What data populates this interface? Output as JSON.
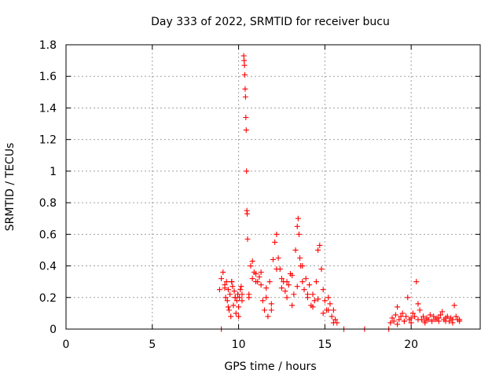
{
  "chart_data": {
    "type": "scatter",
    "title": "Day 333 of 2022, SRMTID for receiver bucu",
    "xlabel": "GPS time / hours",
    "ylabel": "SRMTID / TECUs",
    "xlim": [
      0,
      24
    ],
    "ylim": [
      0,
      1.8
    ],
    "xticks": [
      0,
      5,
      10,
      15,
      20
    ],
    "xtick_labels": [
      "0",
      "5",
      "10",
      "15",
      "20"
    ],
    "yticks": [
      0,
      0.2,
      0.4,
      0.6,
      0.8,
      1.0,
      1.2,
      1.4,
      1.6,
      1.8
    ],
    "ytick_labels": [
      "0",
      "0.2",
      "0.4",
      "0.6",
      "0.8",
      "1",
      "1.2",
      "1.4",
      "1.6",
      "1.8"
    ],
    "grid": true,
    "marker": "+",
    "color": "#ff0000",
    "series": [
      {
        "name": "SRMTID",
        "x": [
          8.9,
          9.0,
          9.1,
          9.2,
          9.25,
          9.3,
          9.35,
          9.4,
          9.45,
          9.5,
          9.55,
          9.6,
          9.65,
          9.7,
          9.75,
          9.8,
          9.85,
          9.9,
          9.95,
          10.0,
          10.05,
          10.1,
          10.15,
          10.2,
          10.3,
          10.32,
          10.34,
          10.36,
          10.38,
          10.4,
          10.42,
          10.44,
          10.46,
          10.48,
          10.5,
          10.52,
          10.6,
          10.7,
          10.8,
          10.9,
          11.0,
          11.1,
          11.2,
          11.3,
          11.4,
          11.5,
          11.6,
          11.7,
          11.8,
          11.9,
          12.0,
          12.1,
          12.2,
          12.3,
          12.4,
          12.5,
          12.6,
          12.7,
          12.8,
          12.9,
          13.0,
          13.1,
          13.2,
          13.3,
          13.4,
          13.45,
          13.5,
          13.55,
          13.6,
          13.7,
          13.8,
          13.9,
          14.0,
          14.1,
          14.2,
          14.3,
          14.4,
          14.5,
          14.6,
          14.7,
          14.8,
          14.9,
          15.0,
          15.1,
          15.2,
          15.3,
          15.4,
          15.5,
          15.6,
          15.7,
          16.1,
          17.3,
          18.7,
          18.8,
          18.9,
          19.0,
          19.1,
          19.2,
          19.3,
          19.4,
          19.5,
          19.6,
          19.7,
          19.8,
          19.9,
          20.0,
          20.1,
          20.2,
          20.3,
          20.4,
          20.5,
          20.6,
          20.7,
          20.8,
          20.9,
          21.0,
          21.1,
          21.2,
          21.3,
          21.4,
          21.5,
          21.6,
          21.7,
          21.8,
          21.9,
          22.0,
          22.1,
          22.2,
          22.3,
          22.4,
          22.5,
          22.6,
          22.7,
          22.8,
          9.0,
          9.2,
          9.4,
          9.6,
          9.8,
          10.0,
          10.2,
          10.6,
          10.8,
          11.0,
          11.3,
          11.6,
          11.9,
          12.2,
          12.5,
          12.8,
          13.1,
          13.4,
          13.7,
          14.0,
          14.3,
          14.6,
          14.9,
          15.2,
          15.5,
          19.2,
          19.6,
          20.0,
          20.4,
          20.8,
          21.2,
          21.6,
          22.0,
          22.4,
          22.8
        ],
        "y": [
          0.25,
          0.32,
          0.36,
          0.28,
          0.2,
          0.3,
          0.18,
          0.25,
          0.12,
          0.22,
          0.08,
          0.3,
          0.27,
          0.15,
          0.24,
          0.2,
          0.1,
          0.18,
          0.22,
          0.14,
          0.2,
          0.25,
          0.27,
          0.22,
          1.73,
          1.7,
          1.67,
          1.61,
          1.52,
          1.47,
          1.34,
          1.26,
          1.0,
          0.75,
          0.73,
          0.57,
          0.2,
          0.4,
          0.43,
          0.36,
          0.35,
          0.3,
          0.33,
          0.28,
          0.18,
          0.12,
          0.26,
          0.08,
          0.3,
          0.16,
          0.44,
          0.55,
          0.6,
          0.45,
          0.38,
          0.32,
          0.3,
          0.24,
          0.2,
          0.28,
          0.35,
          0.15,
          0.22,
          0.5,
          0.65,
          0.7,
          0.6,
          0.45,
          0.4,
          0.3,
          0.25,
          0.32,
          0.2,
          0.28,
          0.15,
          0.22,
          0.18,
          0.3,
          0.5,
          0.53,
          0.38,
          0.25,
          0.18,
          0.12,
          0.2,
          0.16,
          0.08,
          0.12,
          0.06,
          0.04,
          0.0,
          0.0,
          0.0,
          0.04,
          0.07,
          0.05,
          0.09,
          0.14,
          0.06,
          0.08,
          0.1,
          0.05,
          0.08,
          0.2,
          0.06,
          0.07,
          0.1,
          0.08,
          0.3,
          0.16,
          0.12,
          0.06,
          0.08,
          0.05,
          0.07,
          0.06,
          0.09,
          0.05,
          0.08,
          0.06,
          0.07,
          0.05,
          0.09,
          0.11,
          0.06,
          0.07,
          0.08,
          0.05,
          0.07,
          0.06,
          0.15,
          0.08,
          0.06,
          0.05,
          0.0,
          0.26,
          0.14,
          0.3,
          0.2,
          0.08,
          0.18,
          0.22,
          0.32,
          0.3,
          0.36,
          0.2,
          0.12,
          0.38,
          0.26,
          0.3,
          0.34,
          0.27,
          0.4,
          0.22,
          0.14,
          0.19,
          0.1,
          0.12,
          0.04,
          0.03,
          0.05,
          0.04,
          0.06,
          0.04,
          0.05,
          0.07,
          0.05,
          0.04,
          0.06
        ]
      }
    ]
  }
}
